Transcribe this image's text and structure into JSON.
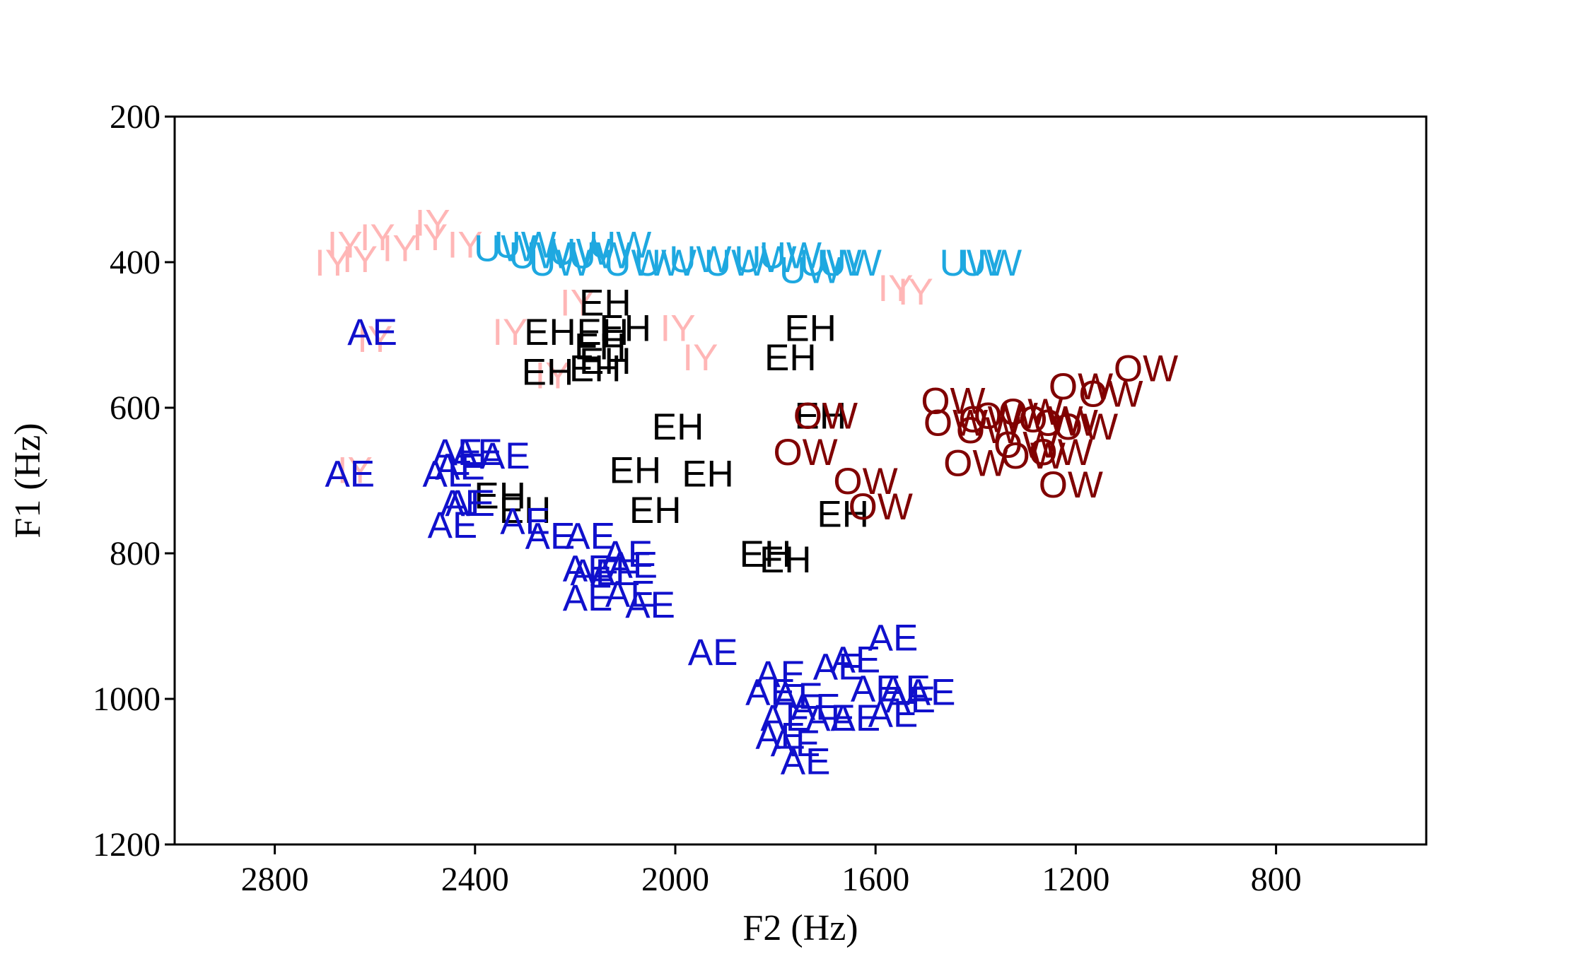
{
  "chart_data": {
    "type": "scatter",
    "title": "",
    "xlabel": "F2 (Hz)",
    "ylabel": "F1 (Hz)",
    "xlim": [
      3000,
      500
    ],
    "ylim": [
      1200,
      200
    ],
    "x_reversed": true,
    "y_reversed": true,
    "xticks": [
      2800,
      2400,
      2000,
      1600,
      1200,
      800
    ],
    "yticks": [
      200,
      400,
      600,
      800,
      1000,
      1200
    ],
    "grid": false,
    "legend": "none",
    "marker": "text label",
    "series": [
      {
        "name": "IY",
        "color": "#ffb6b6",
        "points": [
          [
            2685,
            400
          ],
          [
            2660,
            375
          ],
          [
            2630,
            395
          ],
          [
            2595,
            365
          ],
          [
            2550,
            380
          ],
          [
            2490,
            365
          ],
          [
            2485,
            345
          ],
          [
            2420,
            375
          ],
          [
            2600,
            505
          ],
          [
            2330,
            495
          ],
          [
            2245,
            555
          ],
          [
            2195,
            455
          ],
          [
            1995,
            490
          ],
          [
            1950,
            530
          ],
          [
            1560,
            435
          ],
          [
            1520,
            440
          ],
          [
            2640,
            685
          ]
        ]
      },
      {
        "name": "UW",
        "color": "#1ea8e0",
        "points": [
          [
            2340,
            380
          ],
          [
            2300,
            375
          ],
          [
            2270,
            390
          ],
          [
            2230,
            400
          ],
          [
            2190,
            385
          ],
          [
            2150,
            390
          ],
          [
            2110,
            375
          ],
          [
            2080,
            400
          ],
          [
            2020,
            400
          ],
          [
            1950,
            395
          ],
          [
            1880,
            400
          ],
          [
            1820,
            395
          ],
          [
            1770,
            390
          ],
          [
            1730,
            410
          ],
          [
            1690,
            400
          ],
          [
            1650,
            400
          ],
          [
            1410,
            400
          ],
          [
            1370,
            400
          ]
        ]
      },
      {
        "name": "EH",
        "color": "#000000",
        "points": [
          [
            2140,
            455
          ],
          [
            2250,
            495
          ],
          [
            2145,
            495
          ],
          [
            2100,
            490
          ],
          [
            2150,
            515
          ],
          [
            2140,
            535
          ],
          [
            2255,
            550
          ],
          [
            2160,
            545
          ],
          [
            1730,
            490
          ],
          [
            1770,
            530
          ],
          [
            1995,
            625
          ],
          [
            2080,
            685
          ],
          [
            1935,
            690
          ],
          [
            2040,
            740
          ],
          [
            2350,
            720
          ],
          [
            2300,
            740
          ],
          [
            1710,
            610
          ],
          [
            1665,
            745
          ],
          [
            1820,
            800
          ],
          [
            1780,
            808
          ]
        ]
      },
      {
        "name": "AE",
        "color": "#1010cc",
        "points": [
          [
            2605,
            495
          ],
          [
            2650,
            690
          ],
          [
            2435,
            660
          ],
          [
            2395,
            660
          ],
          [
            2340,
            665
          ],
          [
            2430,
            680
          ],
          [
            2455,
            690
          ],
          [
            2410,
            730
          ],
          [
            2420,
            730
          ],
          [
            2445,
            760
          ],
          [
            2300,
            755
          ],
          [
            2250,
            775
          ],
          [
            2170,
            775
          ],
          [
            2095,
            800
          ],
          [
            2175,
            820
          ],
          [
            2160,
            825
          ],
          [
            2120,
            825
          ],
          [
            2085,
            815
          ],
          [
            2175,
            860
          ],
          [
            2090,
            855
          ],
          [
            2050,
            870
          ],
          [
            1925,
            935
          ],
          [
            1565,
            915
          ],
          [
            1640,
            945
          ],
          [
            1675,
            955
          ],
          [
            1790,
            965
          ],
          [
            1810,
            990
          ],
          [
            1755,
            995
          ],
          [
            1720,
            1010
          ],
          [
            1600,
            985
          ],
          [
            1540,
            985
          ],
          [
            1490,
            990
          ],
          [
            1530,
            1000
          ],
          [
            1780,
            1025
          ],
          [
            1690,
            1025
          ],
          [
            1640,
            1025
          ],
          [
            1565,
            1020
          ],
          [
            1790,
            1050
          ],
          [
            1760,
            1060
          ],
          [
            1740,
            1085
          ]
        ]
      },
      {
        "name": "OW",
        "color": "#800000",
        "points": [
          [
            1700,
            610
          ],
          [
            1740,
            660
          ],
          [
            1620,
            700
          ],
          [
            1590,
            735
          ],
          [
            1445,
            590
          ],
          [
            1440,
            620
          ],
          [
            1370,
            615
          ],
          [
            1375,
            630
          ],
          [
            1340,
            610
          ],
          [
            1290,
            605
          ],
          [
            1250,
            615
          ],
          [
            1220,
            620
          ],
          [
            1180,
            625
          ],
          [
            1300,
            650
          ],
          [
            1285,
            665
          ],
          [
            1230,
            660
          ],
          [
            1400,
            675
          ],
          [
            1190,
            570
          ],
          [
            1130,
            580
          ],
          [
            1060,
            545
          ],
          [
            1210,
            705
          ]
        ]
      }
    ]
  }
}
